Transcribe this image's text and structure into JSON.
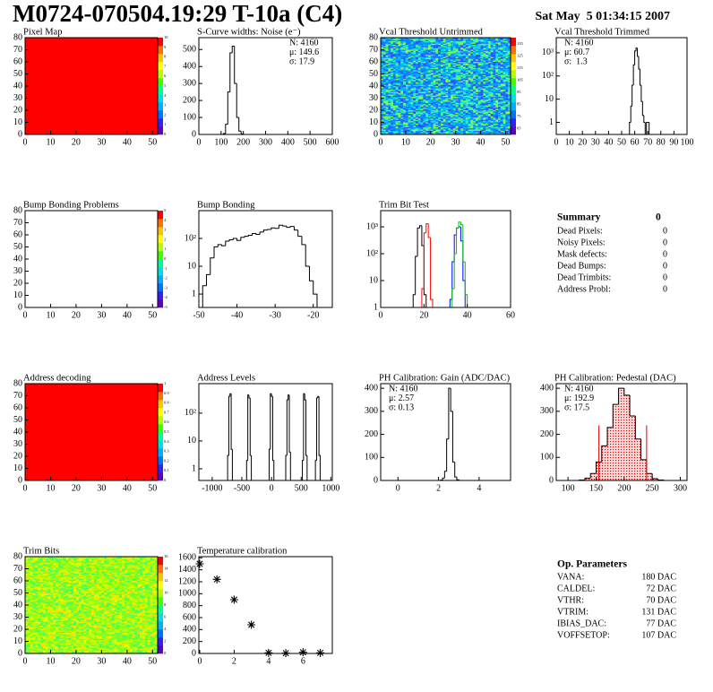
{
  "header": {
    "title": "M0724-070504.19:29 T-10a (C4)",
    "date": "Sat May  5 01:34:15 2007"
  },
  "chart_data": [
    {
      "type": "heatmap",
      "title": "Pixel Map",
      "color": "#ff0000",
      "xlim": [
        0,
        52
      ],
      "ylim": [
        0,
        80
      ],
      "xticks": [
        0,
        10,
        20,
        30,
        40,
        50
      ],
      "yticks": [
        0,
        10,
        20,
        30,
        40,
        50,
        60,
        70,
        80
      ],
      "cbar_lim": [
        0,
        10
      ],
      "cbar_ticks": [
        0,
        1,
        2,
        3,
        4,
        5,
        6,
        7,
        8,
        9,
        10
      ]
    },
    {
      "type": "histogram",
      "title": "S-Curve widths: Noise (e⁻)",
      "xlim": [
        0,
        600
      ],
      "ylim": [
        0,
        570
      ],
      "xticks": [
        0,
        100,
        200,
        300,
        400,
        500,
        600
      ],
      "yticks": [
        0,
        100,
        200,
        300,
        400,
        500
      ],
      "stats": [
        "N: 4160",
        "μ: 149.6",
        "σ: 17.9"
      ],
      "stats_corner": "right",
      "series": [
        {
          "color": "#000000",
          "bins": [
            110,
            120,
            130,
            140,
            150,
            160,
            170,
            180,
            190,
            200
          ],
          "counts": [
            5,
            60,
            250,
            480,
            520,
            300,
            100,
            20,
            3
          ]
        }
      ]
    },
    {
      "type": "heatmap",
      "title": "Vcal Threshold Untrimmed",
      "colors": [
        "#00b0ff",
        "#0090ff",
        "#2070ff",
        "#00d8e8",
        "#40f0a0",
        "#80ff40",
        "#3050ff"
      ],
      "xlim": [
        0,
        52
      ],
      "ylim": [
        0,
        80
      ],
      "xticks": [
        0,
        10,
        20,
        30,
        40,
        50
      ],
      "yticks": [
        0,
        10,
        20,
        30,
        40,
        50,
        60,
        70,
        80
      ],
      "cbar_lim": [
        60,
        140
      ],
      "cbar_ticks": [
        65,
        75,
        85,
        95,
        105,
        115,
        125,
        135
      ]
    },
    {
      "type": "histogram",
      "title": "Vcal Threshold Trimmed",
      "log_y": true,
      "xlim": [
        0,
        100
      ],
      "ylim": [
        0.3,
        4500
      ],
      "xticks": [
        0,
        10,
        20,
        30,
        40,
        50,
        60,
        70,
        80,
        90,
        100
      ],
      "yticks": [
        1,
        10,
        {
          "value": 100,
          "label": "10²"
        },
        {
          "value": 1000,
          "label": "10³"
        }
      ],
      "stats": [
        "N: 4160",
        "μ: 60.7",
        "σ:  1.3"
      ],
      "stats_corner": "left",
      "series": [
        {
          "color": "#000000",
          "bins": [
            56,
            57,
            58,
            59,
            60,
            61,
            62,
            63,
            64,
            65,
            66,
            67,
            68,
            69,
            70,
            71
          ],
          "counts": [
            1,
            5,
            40,
            300,
            1200,
            1600,
            700,
            200,
            40,
            8,
            2,
            1,
            0,
            1,
            1
          ]
        }
      ]
    },
    {
      "type": "heatmap",
      "title": "Bump Bonding Problems",
      "xlim": [
        0,
        52
      ],
      "ylim": [
        0,
        80
      ],
      "xticks": [
        0,
        10,
        20,
        30,
        40,
        50
      ],
      "yticks": [
        0,
        10,
        20,
        30,
        40,
        50,
        60,
        70,
        80
      ],
      "cbar_lim": [
        -5,
        5
      ],
      "cbar_ticks": [
        -5,
        -4,
        -3,
        -2,
        -1,
        0,
        1,
        2,
        3,
        4,
        5
      ]
    },
    {
      "type": "histogram",
      "title": "Bump Bonding",
      "log_y": true,
      "xlim": [
        -50,
        -15
      ],
      "ylim": [
        0.33,
        1000
      ],
      "xticks": [
        -50,
        -40,
        -30,
        -20
      ],
      "yticks": [
        1,
        10,
        {
          "value": 100,
          "label": "10²"
        }
      ],
      "series": [
        {
          "color": "#000000",
          "bins": [
            -49,
            -48,
            -47,
            -46,
            -45,
            -44,
            -43,
            -42,
            -41,
            -40,
            -39,
            -38,
            -37,
            -36,
            -35,
            -34,
            -33,
            -32,
            -31,
            -30,
            -29,
            -28,
            -27,
            -26,
            -25,
            -24,
            -23,
            -22,
            -21,
            -20,
            -19
          ],
          "counts": [
            2,
            5,
            20,
            50,
            60,
            55,
            80,
            90,
            100,
            85,
            110,
            120,
            130,
            150,
            140,
            170,
            200,
            210,
            240,
            230,
            300,
            280,
            250,
            270,
            200,
            120,
            60,
            10,
            3,
            1
          ]
        }
      ]
    },
    {
      "type": "histogram",
      "title": "Trim Bit Test",
      "log_y": true,
      "xlim": [
        0,
        60
      ],
      "ylim": [
        1,
        4000
      ],
      "xticks": [
        0,
        20,
        40,
        60
      ],
      "yticks": [
        1,
        10,
        {
          "value": 100,
          "label": "10²"
        },
        {
          "value": 1000,
          "label": "10³"
        }
      ],
      "series": [
        {
          "color": "#000000",
          "bins": [
            15,
            16,
            17,
            18,
            19,
            20,
            21
          ],
          "counts": [
            3,
            80,
            900,
            1100,
            200,
            3
          ]
        },
        {
          "color": "#ff0000",
          "bins": [
            19,
            20,
            21,
            22,
            23,
            24
          ],
          "counts": [
            5,
            600,
            1300,
            400,
            2
          ]
        },
        {
          "color": "#0000ff",
          "bins": [
            32,
            33,
            34,
            35,
            36,
            37,
            38,
            39
          ],
          "counts": [
            2,
            50,
            500,
            900,
            1000,
            300,
            10
          ]
        },
        {
          "color": "#00c000",
          "bins": [
            33,
            34,
            35,
            36,
            37,
            38,
            39,
            40
          ],
          "counts": [
            5,
            100,
            900,
            1500,
            1200,
            50,
            3
          ]
        }
      ]
    },
    {
      "type": "heatmap",
      "title": "Address decoding",
      "color": "#ff0000",
      "xlim": [
        0,
        52
      ],
      "ylim": [
        0,
        80
      ],
      "xticks": [
        0,
        10,
        20,
        30,
        40,
        50
      ],
      "yticks": [
        0,
        10,
        20,
        30,
        40,
        50,
        60,
        70,
        80
      ],
      "cbar_lim": [
        0,
        1
      ],
      "cbar_ticks": [
        0,
        0.1,
        0.2,
        0.3,
        0.4,
        0.5,
        0.6,
        0.7,
        0.8,
        0.9,
        1
      ]
    },
    {
      "type": "histogram",
      "title": "Address Levels",
      "log_y": true,
      "xlim": [
        -1225,
        1025
      ],
      "ylim": [
        0.38,
        1150
      ],
      "xticks": [
        -1000,
        -500,
        0,
        500,
        1000
      ],
      "yticks": [
        1,
        10,
        {
          "value": 100,
          "label": "10²"
        }
      ],
      "series": [
        {
          "color": "#000000",
          "bins": [
            -740,
            -720,
            -700,
            -680,
            -660,
            -420,
            -400,
            -380,
            -360,
            -340,
            -40,
            -20,
            0,
            20,
            40,
            240,
            260,
            280,
            300,
            320,
            520,
            540,
            560,
            580,
            600,
            740,
            760,
            780,
            800,
            820
          ],
          "counts": [
            3,
            400,
            500,
            5,
            0,
            2,
            450,
            350,
            3,
            0,
            5,
            500,
            400,
            2,
            0,
            3,
            300,
            450,
            4,
            0,
            2,
            500,
            300,
            3,
            0,
            2,
            350,
            400,
            3
          ]
        }
      ]
    },
    {
      "type": "histogram",
      "title": "PH Calibration: Gain (ADC/DAC)",
      "xlim": [
        -0.85,
        5.55
      ],
      "ylim": [
        0,
        420
      ],
      "xticks": [
        0,
        2,
        4
      ],
      "yticks": [
        0,
        100,
        200,
        300,
        400
      ],
      "stats": [
        "N: 4160",
        "μ: 2.57",
        "σ: 0.13"
      ],
      "stats_corner": "left",
      "series": [
        {
          "color": "#000000",
          "bins": [
            2.1,
            2.2,
            2.3,
            2.4,
            2.5,
            2.6,
            2.7,
            2.8,
            2.9,
            3.0
          ],
          "counts": [
            2,
            10,
            40,
            180,
            400,
            300,
            80,
            15,
            3
          ]
        }
      ]
    },
    {
      "type": "histogram",
      "title": "PH Calibration: Pedestal (DAC)",
      "xlim": [
        79,
        312
      ],
      "ylim": [
        0,
        420
      ],
      "xticks": [
        100,
        150,
        200,
        250,
        300
      ],
      "yticks": [
        0,
        100,
        200,
        300,
        400
      ],
      "stats": [
        "N: 4160",
        "μ: 192.9",
        "σ: 17.5"
      ],
      "stats_colors": [
        "#000000",
        "#e00000",
        "#e00000"
      ],
      "stats_corner": "left",
      "cuts": [
        155,
        240
      ],
      "cut_color": "#e00000",
      "series": [
        {
          "color": "#000000",
          "fill": "#ff0000",
          "bins": [
            120,
            130,
            140,
            150,
            160,
            170,
            180,
            190,
            200,
            210,
            220,
            230,
            240,
            250,
            260,
            270
          ],
          "counts": [
            2,
            10,
            30,
            80,
            150,
            230,
            330,
            400,
            370,
            280,
            180,
            90,
            30,
            8,
            2
          ]
        }
      ]
    },
    {
      "type": "heatmap",
      "title": "Trim Bits",
      "colors": [
        "#a0ff00",
        "#c0ff00",
        "#80ff20",
        "#e0ff00",
        "#60ff40",
        "#ffe000",
        "#40ff60"
      ],
      "xlim": [
        0,
        52
      ],
      "ylim": [
        0,
        80
      ],
      "xticks": [
        0,
        10,
        20,
        30,
        40,
        50
      ],
      "yticks": [
        0,
        10,
        20,
        30,
        40,
        50,
        60,
        70,
        80
      ],
      "cbar_lim": [
        0,
        16
      ],
      "cbar_ticks": [
        0,
        2,
        4,
        6,
        8,
        10,
        12,
        14,
        16
      ]
    },
    {
      "type": "scatter",
      "title": "Temperature calibration",
      "xlim": [
        -0.05,
        7.7
      ],
      "ylim": [
        0,
        1620
      ],
      "xticks": [
        0,
        2,
        4,
        6
      ],
      "yticks": [
        0,
        200,
        400,
        600,
        800,
        1000,
        1200,
        1400,
        1600
      ],
      "x": [
        0,
        1,
        2,
        3,
        4,
        5,
        6,
        7
      ],
      "y": [
        1500,
        1240,
        900,
        480,
        10,
        5,
        20,
        10
      ]
    }
  ],
  "summary": {
    "title": "Summary",
    "total": "0",
    "rows": [
      [
        "Dead Pixels:",
        "0"
      ],
      [
        "Noisy Pixels:",
        "0"
      ],
      [
        "Mask defects:",
        "0"
      ],
      [
        "Dead Bumps:",
        "0"
      ],
      [
        "Dead Trimbits:",
        "0"
      ],
      [
        "Address Probl:",
        "0"
      ]
    ]
  },
  "op_parameters": {
    "title": "Op. Parameters",
    "rows": [
      [
        "VANA:",
        "180 DAC"
      ],
      [
        "CALDEL:",
        "72 DAC"
      ],
      [
        "VTHR:",
        "70 DAC"
      ],
      [
        "VTRIM:",
        "131 DAC"
      ],
      [
        "IBIAS_DAC:",
        "77 DAC"
      ],
      [
        "VOFFSETOP:",
        "107 DAC"
      ]
    ]
  }
}
